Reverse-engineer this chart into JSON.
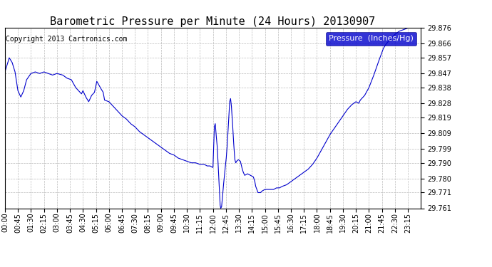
{
  "title": "Barometric Pressure per Minute (24 Hours) 20130907",
  "copyright": "Copyright 2013 Cartronics.com",
  "legend_label": "Pressure  (Inches/Hg)",
  "legend_bg": "#0000cc",
  "legend_text_color": "#ffffff",
  "line_color": "#0000cc",
  "background_color": "#ffffff",
  "grid_color": "#bbbbbb",
  "ylim": [
    29.761,
    29.876
  ],
  "yticks": [
    29.761,
    29.771,
    29.78,
    29.79,
    29.799,
    29.809,
    29.819,
    29.828,
    29.838,
    29.847,
    29.857,
    29.866,
    29.876
  ],
  "xtick_labels": [
    "00:00",
    "00:45",
    "01:30",
    "02:15",
    "03:00",
    "03:45",
    "04:30",
    "05:15",
    "06:00",
    "06:45",
    "07:30",
    "08:15",
    "09:00",
    "09:45",
    "10:30",
    "11:15",
    "12:00",
    "12:45",
    "13:30",
    "14:15",
    "15:00",
    "15:45",
    "16:30",
    "17:15",
    "18:00",
    "18:45",
    "19:30",
    "20:15",
    "21:00",
    "21:45",
    "22:30",
    "23:15"
  ],
  "title_fontsize": 11,
  "copyright_fontsize": 7,
  "tick_fontsize": 7,
  "legend_fontsize": 8,
  "key_points": [
    [
      0,
      29.848
    ],
    [
      15,
      29.857
    ],
    [
      25,
      29.854
    ],
    [
      35,
      29.848
    ],
    [
      45,
      29.836
    ],
    [
      55,
      29.832
    ],
    [
      65,
      29.836
    ],
    [
      75,
      29.843
    ],
    [
      90,
      29.847
    ],
    [
      105,
      29.848
    ],
    [
      120,
      29.847
    ],
    [
      135,
      29.848
    ],
    [
      150,
      29.847
    ],
    [
      165,
      29.846
    ],
    [
      180,
      29.847
    ],
    [
      200,
      29.846
    ],
    [
      215,
      29.844
    ],
    [
      230,
      29.843
    ],
    [
      245,
      29.838
    ],
    [
      255,
      29.836
    ],
    [
      265,
      29.834
    ],
    [
      270,
      29.836
    ],
    [
      280,
      29.832
    ],
    [
      290,
      29.829
    ],
    [
      300,
      29.833
    ],
    [
      310,
      29.835
    ],
    [
      318,
      29.842
    ],
    [
      330,
      29.838
    ],
    [
      340,
      29.835
    ],
    [
      345,
      29.83
    ],
    [
      360,
      29.829
    ],
    [
      375,
      29.826
    ],
    [
      390,
      29.823
    ],
    [
      405,
      29.82
    ],
    [
      420,
      29.818
    ],
    [
      435,
      29.815
    ],
    [
      450,
      29.813
    ],
    [
      465,
      29.81
    ],
    [
      480,
      29.808
    ],
    [
      495,
      29.806
    ],
    [
      510,
      29.804
    ],
    [
      525,
      29.802
    ],
    [
      540,
      29.8
    ],
    [
      555,
      29.798
    ],
    [
      570,
      29.796
    ],
    [
      585,
      29.795
    ],
    [
      600,
      29.793
    ],
    [
      615,
      29.792
    ],
    [
      630,
      29.791
    ],
    [
      645,
      29.79
    ],
    [
      660,
      29.79
    ],
    [
      675,
      29.789
    ],
    [
      690,
      29.789
    ],
    [
      700,
      29.788
    ],
    [
      710,
      29.788
    ],
    [
      720,
      29.787
    ],
    [
      725,
      29.813
    ],
    [
      728,
      29.815
    ],
    [
      731,
      29.808
    ],
    [
      735,
      29.8
    ],
    [
      738,
      29.789
    ],
    [
      741,
      29.779
    ],
    [
      743,
      29.77
    ],
    [
      745,
      29.763
    ],
    [
      747,
      29.761
    ],
    [
      750,
      29.762
    ],
    [
      753,
      29.768
    ],
    [
      756,
      29.775
    ],
    [
      760,
      29.782
    ],
    [
      763,
      29.788
    ],
    [
      766,
      29.793
    ],
    [
      769,
      29.8
    ],
    [
      772,
      29.81
    ],
    [
      775,
      29.819
    ],
    [
      778,
      29.829
    ],
    [
      781,
      29.831
    ],
    [
      784,
      29.826
    ],
    [
      787,
      29.818
    ],
    [
      790,
      29.808
    ],
    [
      793,
      29.799
    ],
    [
      796,
      29.792
    ],
    [
      799,
      29.79
    ],
    [
      802,
      29.791
    ],
    [
      808,
      29.792
    ],
    [
      815,
      29.791
    ],
    [
      820,
      29.787
    ],
    [
      825,
      29.784
    ],
    [
      830,
      29.782
    ],
    [
      840,
      29.783
    ],
    [
      850,
      29.782
    ],
    [
      860,
      29.781
    ],
    [
      865,
      29.778
    ],
    [
      868,
      29.775
    ],
    [
      872,
      29.773
    ],
    [
      876,
      29.771
    ],
    [
      880,
      29.771
    ],
    [
      885,
      29.771
    ],
    [
      890,
      29.772
    ],
    [
      900,
      29.773
    ],
    [
      910,
      29.773
    ],
    [
      920,
      29.773
    ],
    [
      930,
      29.773
    ],
    [
      940,
      29.774
    ],
    [
      950,
      29.774
    ],
    [
      960,
      29.775
    ],
    [
      975,
      29.776
    ],
    [
      990,
      29.778
    ],
    [
      1005,
      29.78
    ],
    [
      1020,
      29.782
    ],
    [
      1035,
      29.784
    ],
    [
      1050,
      29.786
    ],
    [
      1065,
      29.789
    ],
    [
      1080,
      29.793
    ],
    [
      1095,
      29.798
    ],
    [
      1110,
      29.803
    ],
    [
      1125,
      29.808
    ],
    [
      1140,
      29.812
    ],
    [
      1155,
      29.816
    ],
    [
      1170,
      29.82
    ],
    [
      1185,
      29.824
    ],
    [
      1200,
      29.827
    ],
    [
      1215,
      29.829
    ],
    [
      1225,
      29.828
    ],
    [
      1230,
      29.83
    ],
    [
      1245,
      29.833
    ],
    [
      1260,
      29.838
    ],
    [
      1275,
      29.845
    ],
    [
      1290,
      29.853
    ],
    [
      1300,
      29.858
    ],
    [
      1310,
      29.863
    ],
    [
      1320,
      29.866
    ],
    [
      1330,
      29.868
    ],
    [
      1340,
      29.87
    ],
    [
      1350,
      29.872
    ],
    [
      1365,
      29.874
    ],
    [
      1380,
      29.875
    ],
    [
      1395,
      29.876
    ],
    [
      1410,
      29.877
    ],
    [
      1425,
      29.878
    ],
    [
      1439,
      29.878
    ]
  ]
}
